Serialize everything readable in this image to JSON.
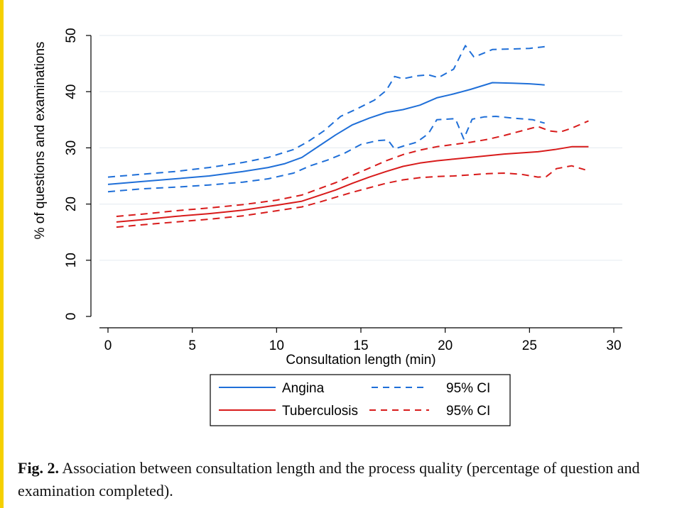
{
  "caption": {
    "label": "Fig. 2.",
    "text": "Association between consultation length and the process quality (percentage of question and examination completed)."
  },
  "colors": {
    "angina": "#1f6fd8",
    "tuberculosis": "#d81b1b",
    "grid": "#e8eef2",
    "accent_bar": "#f5d000"
  },
  "chart_data": {
    "type": "line",
    "title": "",
    "xlabel": "Consultation length (min)",
    "ylabel": "% of questions and examinations",
    "xlim": [
      0,
      30
    ],
    "ylim": [
      0,
      50
    ],
    "x_ticks": [
      0,
      5,
      10,
      15,
      20,
      25,
      30
    ],
    "y_ticks": [
      0,
      10,
      20,
      30,
      40,
      50
    ],
    "grid": true,
    "legend_position": "bottom",
    "legend": [
      {
        "label": "Angina",
        "style": "solid",
        "color": "#1f6fd8"
      },
      {
        "label": "95% CI",
        "style": "dashed",
        "color": "#1f6fd8"
      },
      {
        "label": "Tuberculosis",
        "style": "solid",
        "color": "#d81b1b"
      },
      {
        "label": "95% CI",
        "style": "dashed",
        "color": "#d81b1b"
      }
    ],
    "series": [
      {
        "group": "angina",
        "kind": "estimate",
        "style": "solid",
        "color": "#1f6fd8",
        "x": [
          0,
          2,
          4,
          6,
          8,
          9.5,
          10.5,
          11.5,
          12.5,
          13.5,
          14.5,
          15.5,
          16.5,
          17.5,
          18.5,
          19.5,
          20.5,
          21.5,
          22.8,
          24,
          25,
          25.9
        ],
        "y": [
          23.5,
          24.0,
          24.5,
          25.0,
          25.8,
          26.5,
          27.2,
          28.3,
          30.3,
          32.3,
          34.1,
          35.3,
          36.3,
          36.8,
          37.6,
          38.9,
          39.6,
          40.4,
          41.6,
          41.5,
          41.4,
          41.2
        ]
      },
      {
        "group": "angina",
        "kind": "upper_ci",
        "style": "dashed",
        "color": "#1f6fd8",
        "x": [
          0,
          2,
          4,
          6,
          8,
          9.5,
          11,
          11.8,
          12.8,
          13.8,
          14.8,
          15.8,
          16.5,
          17,
          17.5,
          18.3,
          19,
          19.6,
          20.5,
          21.2,
          21.7,
          22,
          22.8,
          24,
          25,
          25.9
        ],
        "y": [
          24.8,
          25.3,
          25.8,
          26.5,
          27.4,
          28.3,
          29.7,
          31.0,
          33.0,
          35.6,
          37.0,
          38.5,
          40.2,
          42.7,
          42.3,
          42.8,
          43.0,
          42.5,
          44.0,
          48.2,
          46.2,
          46.5,
          47.5,
          47.6,
          47.7,
          48.0
        ]
      },
      {
        "group": "angina",
        "kind": "lower_ci",
        "style": "dashed",
        "color": "#1f6fd8",
        "x": [
          0,
          2,
          4,
          6,
          8,
          9.5,
          11,
          12,
          13,
          14,
          15,
          16,
          16.6,
          17,
          17.5,
          18.3,
          19,
          19.5,
          20.6,
          21.1,
          21.6,
          22.3,
          23,
          24,
          25.2,
          25.9
        ],
        "y": [
          22.2,
          22.7,
          23.0,
          23.4,
          23.9,
          24.5,
          25.5,
          26.8,
          27.8,
          29.0,
          30.6,
          31.3,
          31.4,
          29.8,
          30.3,
          31.0,
          32.5,
          35.0,
          35.2,
          31.6,
          35.1,
          35.5,
          35.6,
          35.3,
          35.0,
          34.4
        ]
      },
      {
        "group": "tuberculosis",
        "kind": "estimate",
        "style": "solid",
        "color": "#d81b1b",
        "x": [
          0.5,
          2,
          4,
          6,
          8,
          10,
          11.5,
          12.5,
          13.5,
          14.5,
          15.5,
          16.5,
          17.5,
          18.5,
          19.5,
          20.5,
          21.5,
          22.5,
          23.5,
          24.5,
          25.5,
          26.5,
          27.5,
          28.5
        ],
        "y": [
          16.8,
          17.2,
          17.8,
          18.3,
          18.9,
          19.8,
          20.5,
          21.5,
          22.5,
          23.7,
          24.8,
          25.8,
          26.7,
          27.3,
          27.7,
          28.0,
          28.3,
          28.6,
          28.9,
          29.1,
          29.3,
          29.7,
          30.2,
          30.2
        ]
      },
      {
        "group": "tuberculosis",
        "kind": "upper_ci",
        "style": "dashed",
        "color": "#d81b1b",
        "x": [
          0.5,
          2,
          4,
          6,
          8,
          10,
          11.5,
          12.5,
          13.5,
          14.5,
          15.5,
          16.5,
          17.5,
          18.5,
          19.5,
          20.5,
          21.5,
          22.5,
          23.5,
          24.5,
          25.5,
          26.2,
          26.8,
          27.5,
          28.5
        ],
        "y": [
          17.8,
          18.2,
          18.8,
          19.3,
          19.9,
          20.7,
          21.6,
          22.7,
          23.8,
          25.1,
          26.4,
          27.7,
          28.8,
          29.6,
          30.2,
          30.6,
          31.0,
          31.5,
          32.2,
          33.0,
          33.8,
          33.0,
          32.8,
          33.5,
          34.8
        ]
      },
      {
        "group": "tuberculosis",
        "kind": "lower_ci",
        "style": "dashed",
        "color": "#d81b1b",
        "x": [
          0.5,
          2,
          4,
          6,
          8,
          10,
          11.5,
          12.5,
          13.5,
          14.5,
          15.5,
          16.5,
          17.5,
          18.5,
          19.5,
          20.5,
          21.5,
          22.5,
          23.5,
          24.5,
          25.5,
          26,
          26.6,
          27.5,
          28.3
        ],
        "y": [
          15.9,
          16.3,
          16.8,
          17.3,
          17.9,
          18.8,
          19.5,
          20.3,
          21.2,
          22.1,
          22.9,
          23.7,
          24.3,
          24.7,
          24.9,
          25.0,
          25.2,
          25.4,
          25.5,
          25.3,
          24.8,
          24.9,
          26.3,
          26.8,
          26.1
        ]
      }
    ]
  }
}
